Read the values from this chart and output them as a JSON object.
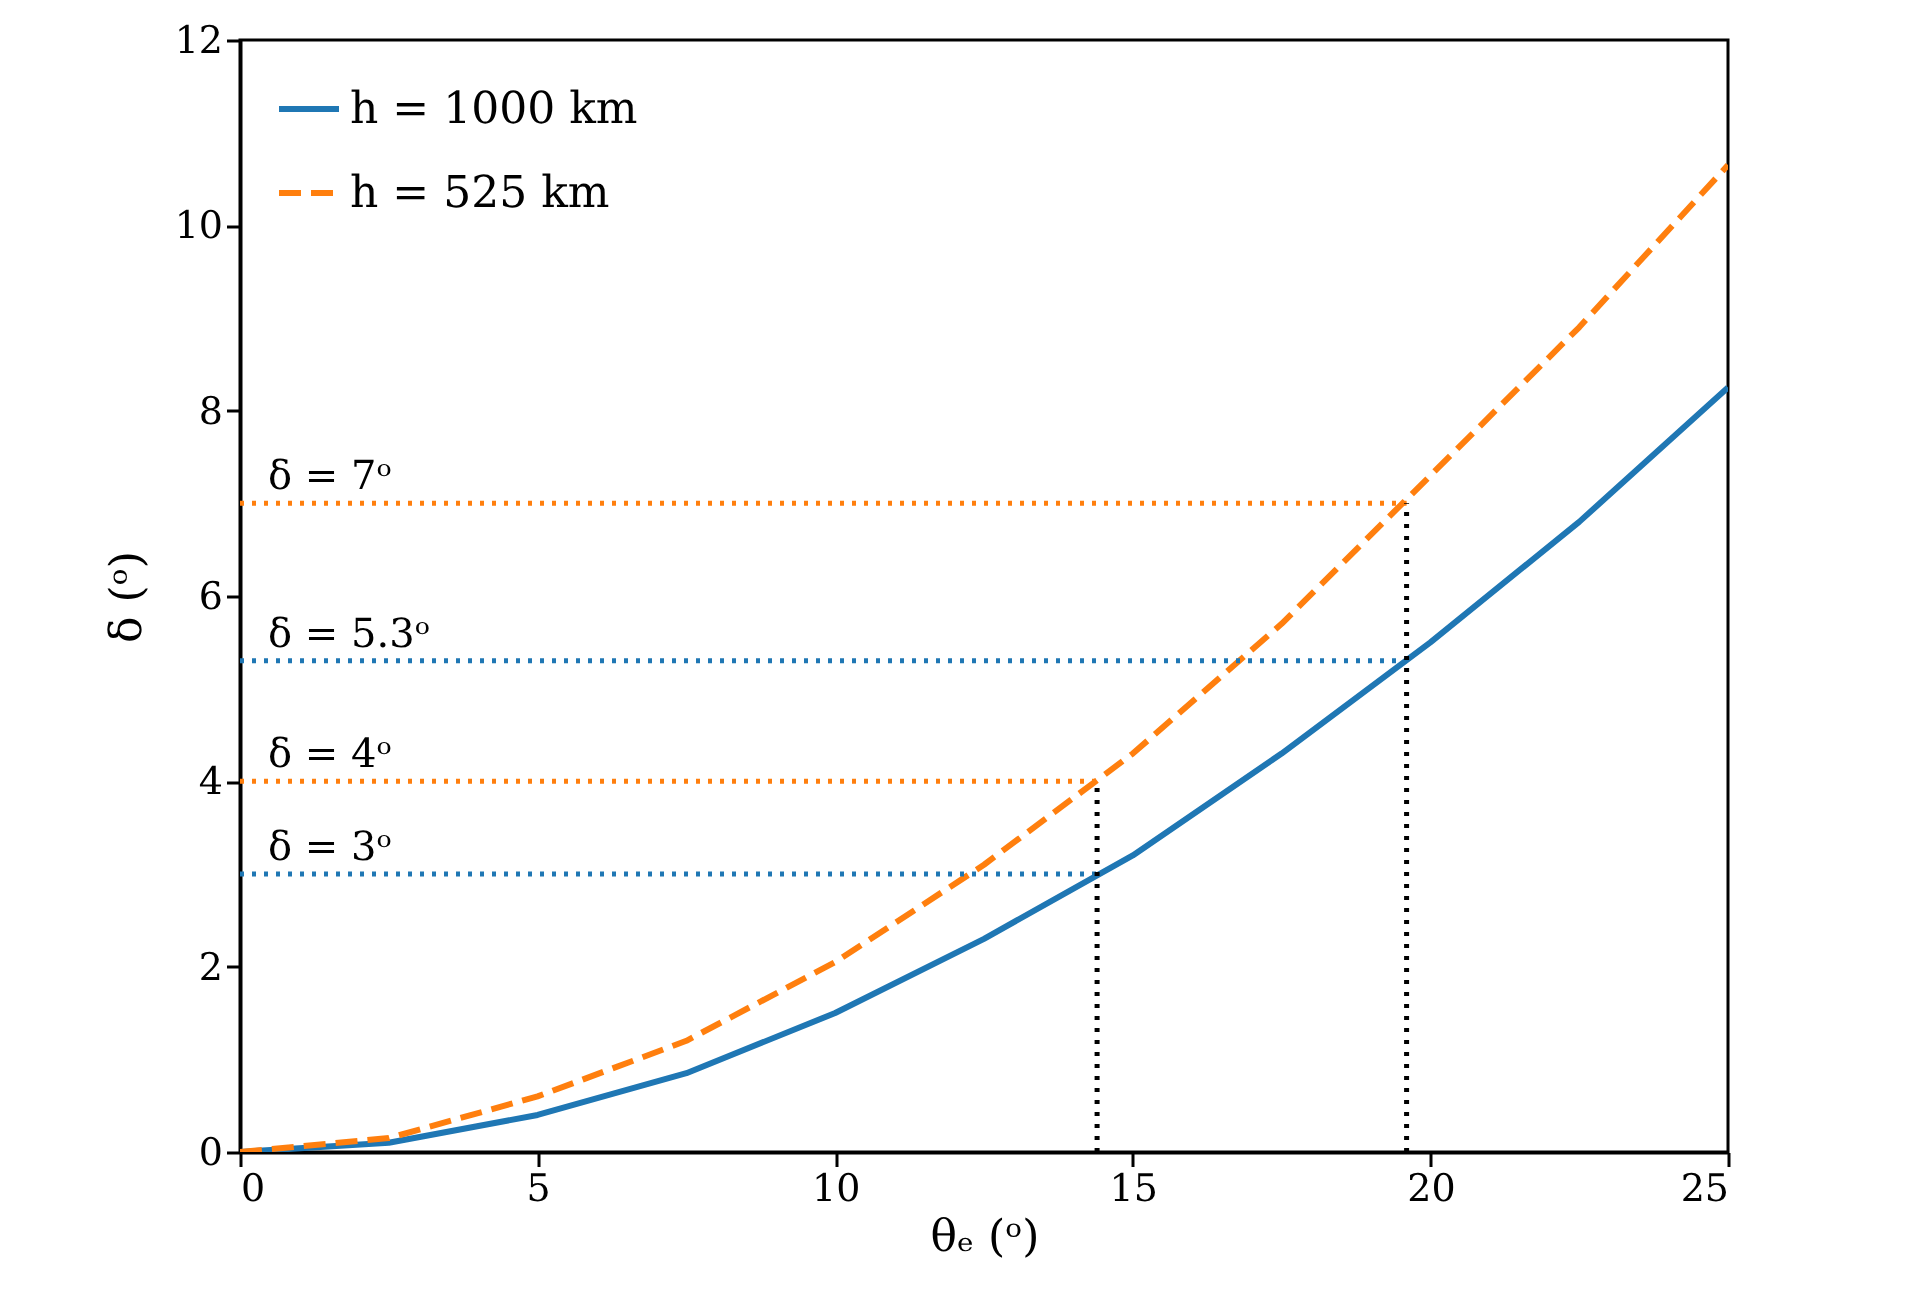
{
  "chart_data": {
    "type": "line",
    "xlabel": "θₑ (ᵒ)",
    "ylabel": "δ (ᵒ)",
    "xlim": [
      0,
      25
    ],
    "ylim": [
      0,
      12
    ],
    "xticks": [
      0,
      5,
      10,
      15,
      20,
      25
    ],
    "yticks": [
      0,
      2,
      4,
      6,
      8,
      10,
      12
    ],
    "legend": "top left",
    "grid": false,
    "series": [
      {
        "name": "h = 1000 km",
        "color": "#1f77b4",
        "line_style": "solid",
        "x": [
          0,
          2.5,
          5,
          7.5,
          10,
          12.5,
          15,
          17.5,
          20,
          22.5,
          25
        ],
        "values": [
          0,
          0.1,
          0.4,
          0.85,
          1.5,
          2.3,
          3.2,
          4.3,
          5.5,
          6.8,
          8.25
        ]
      },
      {
        "name": "h = 525 km",
        "color": "#ff7f0e",
        "line_style": "dashed",
        "x": [
          0,
          2.5,
          5,
          7.5,
          10,
          12.5,
          15,
          17.5,
          20,
          22.5,
          25
        ],
        "values": [
          0,
          0.15,
          0.6,
          1.2,
          2.05,
          3.1,
          4.3,
          5.7,
          7.3,
          8.9,
          10.65
        ]
      },
      {
        "color": "#ff7f0e",
        "line_style": "dotted",
        "x": [
          0,
          19.6
        ],
        "values": [
          7,
          7
        ]
      },
      {
        "color": "#1f77b4",
        "line_style": "dotted",
        "x": [
          0,
          19.6
        ],
        "values": [
          5.3,
          5.3
        ]
      },
      {
        "color": "#ff7f0e",
        "line_style": "dotted",
        "x": [
          0,
          14.4
        ],
        "values": [
          4,
          4
        ]
      },
      {
        "color": "#1f77b4",
        "line_style": "dotted",
        "x": [
          0,
          14.4
        ],
        "values": [
          3,
          3
        ]
      },
      {
        "color": "#000000",
        "line_style": "dotted",
        "x": [
          14.4,
          14.4
        ],
        "values": [
          0,
          4
        ]
      },
      {
        "color": "#000000",
        "line_style": "dotted",
        "x": [
          19.6,
          19.6
        ],
        "values": [
          0,
          7
        ]
      }
    ],
    "annotations": [
      {
        "text": "δ = 7ᵒ",
        "y": 7
      },
      {
        "text": "δ = 5.3ᵒ",
        "y": 5.3
      },
      {
        "text": "δ = 4ᵒ",
        "y": 4
      },
      {
        "text": "δ = 3ᵒ",
        "y": 3
      }
    ]
  }
}
